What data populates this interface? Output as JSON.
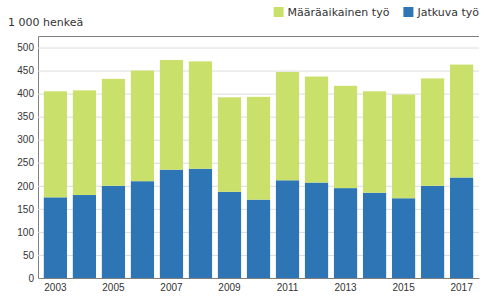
{
  "chart_data": {
    "type": "bar",
    "stacked": true,
    "y_label": "1 000 henkeä",
    "categories": [
      "2003",
      null,
      "2005",
      null,
      "2007",
      null,
      "2009",
      null,
      "2011",
      null,
      "2013",
      null,
      "2015",
      null,
      "2017"
    ],
    "series": [
      {
        "name": "Jatkuva työ",
        "color": "#2e75b6",
        "values": [
          175,
          180,
          200,
          210,
          235,
          237,
          187,
          170,
          212,
          207,
          195,
          185,
          173,
          200,
          218
        ]
      },
      {
        "name": "Määräaikainen työ",
        "color": "#c9e06b",
        "values": [
          230,
          227,
          232,
          240,
          238,
          233,
          205,
          223,
          235,
          230,
          222,
          220,
          225,
          233,
          245
        ]
      }
    ],
    "ylim": [
      0,
      525
    ],
    "yticks": [
      0,
      50,
      100,
      150,
      200,
      250,
      300,
      350,
      400,
      450,
      500
    ],
    "grid": true,
    "legend": "upper-right"
  }
}
